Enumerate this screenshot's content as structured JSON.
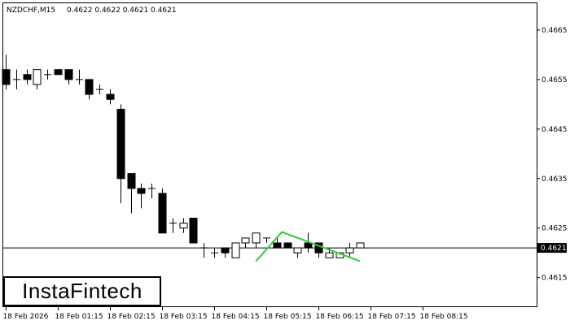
{
  "header": {
    "symbol": "NZDCHF,M15",
    "ohlc": "0.4622 0.4622 0.4621 0.4621"
  },
  "logo": {
    "text": "InstaFintech"
  },
  "colors": {
    "pattern_line": "#32cd32",
    "candle": "#000000",
    "background": "#ffffff"
  },
  "chart_data": {
    "type": "candlestick",
    "y_ticks": [
      "0.4665",
      "0.4655",
      "0.4645",
      "0.4635",
      "0.4625",
      "0.4615"
    ],
    "y_tick_values": [
      0.4665,
      0.4655,
      0.4645,
      0.4635,
      0.4625,
      0.4615
    ],
    "ylim": [
      0.46092,
      0.46704
    ],
    "current_price": 0.4621,
    "current_price_label": "0.4621",
    "x_ticks": [
      "18 Feb 2026",
      "18 Feb 01:15",
      "18 Feb 02:15",
      "18 Feb 03:15",
      "18 Feb 04:15",
      "18 Feb 05:15",
      "18 Feb 06:15",
      "18 Feb 07:15",
      "18 Feb 08:15"
    ],
    "x_tick_index": [
      0,
      5,
      10,
      15,
      20,
      25,
      30,
      35,
      40
    ],
    "candles": [
      {
        "o": 0.4657,
        "h": 0.466,
        "l": 0.4653,
        "c": 0.4654
      },
      {
        "o": 0.4655,
        "h": 0.4657,
        "l": 0.4653,
        "c": 0.4655
      },
      {
        "o": 0.4656,
        "h": 0.4657,
        "l": 0.4654,
        "c": 0.4655
      },
      {
        "o": 0.4654,
        "h": 0.4657,
        "l": 0.4653,
        "c": 0.4657
      },
      {
        "o": 0.4656,
        "h": 0.4657,
        "l": 0.4655,
        "c": 0.4656
      },
      {
        "o": 0.4657,
        "h": 0.4657,
        "l": 0.4656,
        "c": 0.4656
      },
      {
        "o": 0.4657,
        "h": 0.4657,
        "l": 0.4654,
        "c": 0.4655
      },
      {
        "o": 0.4655,
        "h": 0.4657,
        "l": 0.4654,
        "c": 0.4655
      },
      {
        "o": 0.4655,
        "h": 0.4655,
        "l": 0.4651,
        "c": 0.4652
      },
      {
        "o": 0.4653,
        "h": 0.4654,
        "l": 0.4652,
        "c": 0.4653
      },
      {
        "o": 0.4652,
        "h": 0.4653,
        "l": 0.465,
        "c": 0.4651
      },
      {
        "o": 0.4649,
        "h": 0.465,
        "l": 0.463,
        "c": 0.4635
      },
      {
        "o": 0.4636,
        "h": 0.4636,
        "l": 0.4628,
        "c": 0.4633
      },
      {
        "o": 0.4633,
        "h": 0.4634,
        "l": 0.4629,
        "c": 0.4632
      },
      {
        "o": 0.4633,
        "h": 0.4634,
        "l": 0.4631,
        "c": 0.4633
      },
      {
        "o": 0.4632,
        "h": 0.4633,
        "l": 0.4624,
        "c": 0.4624
      },
      {
        "o": 0.4626,
        "h": 0.4627,
        "l": 0.4624,
        "c": 0.4626
      },
      {
        "o": 0.4625,
        "h": 0.4627,
        "l": 0.4624,
        "c": 0.4626
      },
      {
        "o": 0.4627,
        "h": 0.4627,
        "l": 0.4622,
        "c": 0.4622
      },
      {
        "o": 0.4621,
        "h": 0.4622,
        "l": 0.4619,
        "c": 0.4621
      },
      {
        "o": 0.462,
        "h": 0.4621,
        "l": 0.4619,
        "c": 0.462
      },
      {
        "o": 0.4621,
        "h": 0.4621,
        "l": 0.4619,
        "c": 0.462
      },
      {
        "o": 0.4619,
        "h": 0.4622,
        "l": 0.4619,
        "c": 0.4622
      },
      {
        "o": 0.4622,
        "h": 0.4623,
        "l": 0.4621,
        "c": 0.4623
      },
      {
        "o": 0.4622,
        "h": 0.4624,
        "l": 0.4621,
        "c": 0.4624
      },
      {
        "o": 0.4623,
        "h": 0.4623,
        "l": 0.4622,
        "c": 0.4623
      },
      {
        "o": 0.4622,
        "h": 0.4623,
        "l": 0.4621,
        "c": 0.4621
      },
      {
        "o": 0.4622,
        "h": 0.4622,
        "l": 0.4621,
        "c": 0.4621
      },
      {
        "o": 0.462,
        "h": 0.4621,
        "l": 0.4619,
        "c": 0.4621
      },
      {
        "o": 0.4622,
        "h": 0.4624,
        "l": 0.462,
        "c": 0.4621
      },
      {
        "o": 0.4622,
        "h": 0.4622,
        "l": 0.4619,
        "c": 0.462
      },
      {
        "o": 0.4619,
        "h": 0.4621,
        "l": 0.4619,
        "c": 0.462
      },
      {
        "o": 0.4619,
        "h": 0.462,
        "l": 0.4619,
        "c": 0.462
      },
      {
        "o": 0.462,
        "h": 0.4622,
        "l": 0.4619,
        "c": 0.4621
      },
      {
        "o": 0.4621,
        "h": 0.4622,
        "l": 0.4621,
        "c": 0.4622
      }
    ],
    "candle_index": [
      0,
      1,
      2,
      3,
      4,
      5,
      6,
      7,
      8,
      9,
      10,
      11,
      12,
      13,
      14,
      15,
      16,
      17,
      18,
      19,
      20,
      21,
      22,
      23,
      24,
      25,
      26,
      27,
      28,
      29,
      30,
      31,
      32,
      33,
      34
    ],
    "pattern_line": [
      {
        "i": 24.0,
        "p": 0.46183
      },
      {
        "i": 26.5,
        "p": 0.46242
      },
      {
        "i": 34.0,
        "p": 0.46183
      }
    ]
  }
}
